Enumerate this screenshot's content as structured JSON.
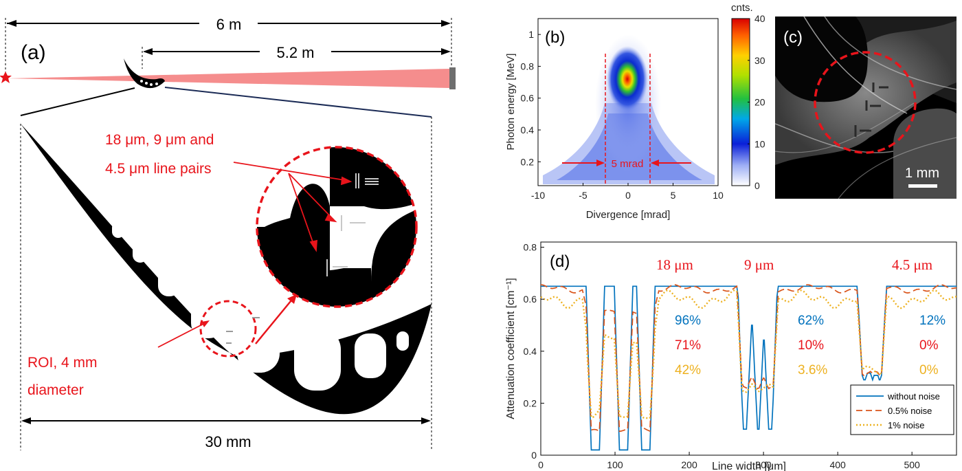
{
  "panel_a": {
    "label": "(a)",
    "distance_total": "6 m",
    "distance_part": "5.2 m",
    "linepairs_line1": "18 μm, 9 μm and",
    "linepairs_line2": "4.5 μm line pairs",
    "roi_line1": "ROI, 4 mm",
    "roi_line2": "diameter",
    "width_label": "30 mm",
    "colors": {
      "annotation": "#e8141b",
      "beam": "#f58d8d",
      "part": "#000000",
      "source": "#e8141b"
    }
  },
  "panel_c": {
    "label": "(c)",
    "scale_label": "1 mm"
  },
  "chart_data": [
    {
      "type": "heatmap",
      "panel_label": "(b)",
      "xlabel": "Divergence [mrad]",
      "ylabel": "Photon energy [MeV]",
      "xlim": [
        -10,
        10
      ],
      "ylim": [
        0.05,
        1.1
      ],
      "xticks": [
        -10,
        -5,
        0,
        5,
        10
      ],
      "yticks": [
        0.2,
        0.4,
        0.6,
        0.8,
        1
      ],
      "colorbar": {
        "title": "cnts.",
        "ticks": [
          0,
          10,
          20,
          30,
          40
        ],
        "range": [
          0,
          40
        ]
      },
      "peak": {
        "divergence": 0,
        "energy": 0.71
      },
      "cut_lines": [
        -2.5,
        2.5
      ],
      "annotation": "5 mrad"
    },
    {
      "type": "line",
      "panel_label": "(d)",
      "xlabel": "Line width [μm]",
      "ylabel": "Attenuation coefficient [cm⁻¹]",
      "xlim": [
        0,
        560
      ],
      "ylim": [
        0,
        0.82
      ],
      "xticks": [
        0,
        100,
        200,
        300,
        400,
        500
      ],
      "yticks": [
        0,
        0.2,
        0.4,
        0.6,
        0.8
      ],
      "groups": [
        "18 μm",
        "9 μm",
        "4.5 μm"
      ],
      "series": [
        {
          "name": "without noise",
          "color": "#0072bd",
          "style": "solid",
          "baseline": 0.65,
          "group_minima": [
            0.02,
            0.1,
            0.29
          ],
          "group_peaks": [
            0.65,
            0.5,
            0.35
          ],
          "contrast": [
            "96%",
            "62%",
            "12%"
          ]
        },
        {
          "name": "0.5% noise",
          "color": "#d95319",
          "style": "dashed",
          "baseline": 0.64,
          "group_minima": [
            0.09,
            0.25,
            0.3
          ],
          "group_peaks": [
            0.55,
            0.3,
            0.33
          ],
          "contrast": [
            "71%",
            "10%",
            "0%"
          ]
        },
        {
          "name": "1% noise",
          "color": "#edb120",
          "style": "dotted",
          "baseline": 0.6,
          "group_minima": [
            0.14,
            0.24,
            0.31
          ],
          "group_peaks": [
            0.45,
            0.27,
            0.32
          ],
          "contrast": [
            "42%",
            "3.6%",
            "0%"
          ]
        }
      ]
    }
  ]
}
